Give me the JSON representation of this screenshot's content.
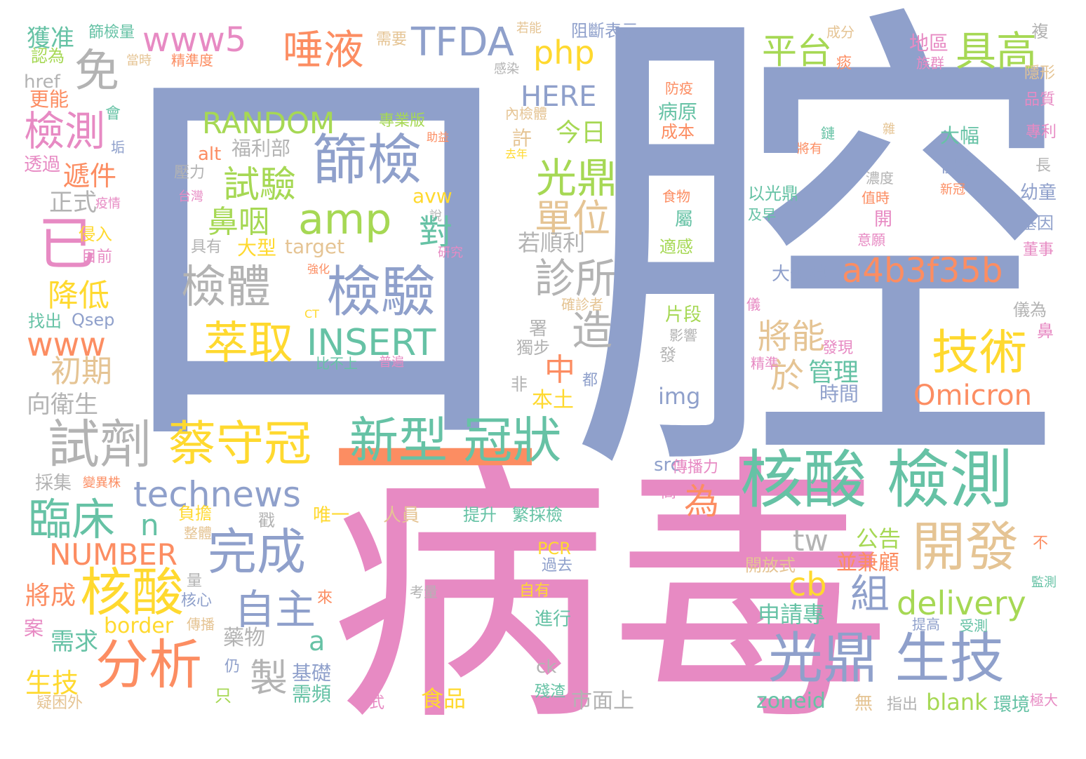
{
  "palette": {
    "blue": "#8fa0cb",
    "pink": "#e78ac3",
    "orange": "#fc8d62",
    "green": "#66c2a5",
    "lime": "#a6d854",
    "yellow": "#ffd92f",
    "tan": "#e5c494",
    "grey": "#b3b3b3"
  },
  "words": [
    {
      "text": "口",
      "color": "blue"
    },
    {
      "text": "腔",
      "color": "blue"
    },
    {
      "text": "病毒",
      "color": "pink"
    },
    {
      "text": "一",
      "color": "orange"
    },
    {
      "text": "核酸 檢測",
      "color": "green"
    },
    {
      "text": "光鼎 生技",
      "color": "blue"
    },
    {
      "text": "篩檢",
      "color": "blue"
    },
    {
      "text": "檢驗",
      "color": "blue"
    },
    {
      "text": "amp",
      "color": "lime"
    },
    {
      "text": "檢體",
      "color": "grey"
    },
    {
      "text": "試驗",
      "color": "lime"
    },
    {
      "text": "萃取",
      "color": "yellow"
    },
    {
      "text": "INSERT",
      "color": "green"
    },
    {
      "text": "RANDOM",
      "color": "lime"
    },
    {
      "text": "鼻咽",
      "color": "lime"
    },
    {
      "text": "福利部",
      "color": "grey"
    },
    {
      "text": "alt",
      "color": "orange"
    },
    {
      "text": "壓力",
      "color": "grey"
    },
    {
      "text": "台灣",
      "color": "pink"
    },
    {
      "text": "具有",
      "color": "grey"
    },
    {
      "text": "大型",
      "color": "yellow"
    },
    {
      "text": "target",
      "color": "tan"
    },
    {
      "text": "專業版",
      "color": "lime"
    },
    {
      "text": "助益",
      "color": "orange"
    },
    {
      "text": "內檢體",
      "color": "tan"
    },
    {
      "text": "許",
      "color": "tan"
    },
    {
      "text": "去年",
      "color": "yellow"
    },
    {
      "text": "說",
      "color": "grey"
    },
    {
      "text": "強化",
      "color": "orange"
    },
    {
      "text": "研究",
      "color": "pink"
    },
    {
      "text": "CT",
      "color": "yellow"
    },
    {
      "text": "比不上",
      "color": "green"
    },
    {
      "text": "普遍",
      "color": "pink"
    },
    {
      "text": "avw",
      "color": "yellow"
    },
    {
      "text": "對",
      "color": "green"
    },
    {
      "text": "試劑",
      "color": "grey"
    },
    {
      "text": "蔡守冠",
      "color": "yellow"
    },
    {
      "text": "新型 冠狀",
      "color": "green"
    },
    {
      "text": "technews",
      "color": "blue"
    },
    {
      "text": "臨床",
      "color": "green"
    },
    {
      "text": "n",
      "color": "green"
    },
    {
      "text": "NUMBER",
      "color": "orange"
    },
    {
      "text": "完成",
      "color": "blue"
    },
    {
      "text": "核酸",
      "color": "yellow"
    },
    {
      "text": "分析",
      "color": "orange"
    },
    {
      "text": "自主",
      "color": "blue"
    },
    {
      "text": "開發",
      "color": "tan"
    },
    {
      "text": "技術",
      "color": "yellow"
    },
    {
      "text": "delivery",
      "color": "lime"
    },
    {
      "text": "Omicron",
      "color": "orange"
    },
    {
      "text": "a4b3f35b",
      "color": "orange"
    },
    {
      "text": "唾液",
      "color": "orange"
    },
    {
      "text": "TFDA",
      "color": "blue"
    },
    {
      "text": "www5",
      "color": "pink"
    },
    {
      "text": "php",
      "color": "yellow"
    },
    {
      "text": "HERE",
      "color": "blue"
    },
    {
      "text": "免",
      "color": "grey"
    },
    {
      "text": "檢測",
      "color": "pink"
    },
    {
      "text": "已",
      "color": "pink"
    },
    {
      "text": "www",
      "color": "orange"
    },
    {
      "text": "初期",
      "color": "tan"
    },
    {
      "text": "降低",
      "color": "yellow"
    },
    {
      "text": "平台",
      "color": "lime"
    },
    {
      "text": "具高",
      "color": "lime"
    },
    {
      "text": "光鼎",
      "color": "lime"
    },
    {
      "text": "單位",
      "color": "tan"
    },
    {
      "text": "今日",
      "color": "lime"
    },
    {
      "text": "診所",
      "color": "grey"
    },
    {
      "text": "若順利",
      "color": "grey"
    },
    {
      "text": "造",
      "color": "grey"
    },
    {
      "text": "將能",
      "color": "tan"
    },
    {
      "text": "於",
      "color": "tan"
    },
    {
      "text": "管理",
      "color": "green"
    },
    {
      "text": "時間",
      "color": "blue"
    },
    {
      "text": "中",
      "color": "orange"
    },
    {
      "text": "本土",
      "color": "yellow"
    },
    {
      "text": "img",
      "color": "blue"
    },
    {
      "text": "為",
      "color": "orange"
    },
    {
      "text": "tw",
      "color": "grey"
    },
    {
      "text": "cb",
      "color": "yellow"
    },
    {
      "text": "組",
      "color": "blue"
    },
    {
      "text": "製",
      "color": "grey"
    },
    {
      "text": "a",
      "color": "green"
    },
    {
      "text": "藥物",
      "color": "grey"
    },
    {
      "text": "公告",
      "color": "lime"
    },
    {
      "text": "並兼顧",
      "color": "orange"
    },
    {
      "text": "申請專",
      "color": "green"
    },
    {
      "text": "zoneid",
      "color": "green"
    },
    {
      "text": "blank",
      "color": "lime"
    },
    {
      "text": "食品",
      "color": "yellow"
    },
    {
      "text": "市面上",
      "color": "grey"
    },
    {
      "text": "生技",
      "color": "yellow"
    },
    {
      "text": "border",
      "color": "yellow"
    },
    {
      "text": "需求",
      "color": "green"
    },
    {
      "text": "將成",
      "color": "orange"
    },
    {
      "text": "遞件",
      "color": "orange"
    },
    {
      "text": "正式",
      "color": "grey"
    },
    {
      "text": "向衛生",
      "color": "grey"
    },
    {
      "text": "採集",
      "color": "grey"
    },
    {
      "text": "獲准",
      "color": "green"
    },
    {
      "text": "篩檢量",
      "color": "green"
    },
    {
      "text": "認為",
      "color": "lime"
    },
    {
      "text": "href",
      "color": "grey"
    },
    {
      "text": "更能",
      "color": "orange"
    },
    {
      "text": "透過",
      "color": "pink"
    },
    {
      "text": "侵入",
      "color": "yellow"
    },
    {
      "text": "目前",
      "color": "pink"
    },
    {
      "text": "找出",
      "color": "green"
    },
    {
      "text": "Qsep",
      "color": "blue"
    },
    {
      "text": "疫情",
      "color": "pink"
    },
    {
      "text": "垢",
      "color": "blue"
    },
    {
      "text": "會",
      "color": "green"
    },
    {
      "text": "當時",
      "color": "tan"
    },
    {
      "text": "精準度",
      "color": "orange"
    },
    {
      "text": "需要",
      "color": "tan"
    },
    {
      "text": "若能",
      "color": "tan"
    },
    {
      "text": "阻斷表示",
      "color": "blue"
    },
    {
      "text": "感染",
      "color": "grey"
    },
    {
      "text": "成分",
      "color": "tan"
    },
    {
      "text": "痰",
      "color": "orange"
    },
    {
      "text": "地區",
      "color": "pink"
    },
    {
      "text": "族群",
      "color": "pink"
    },
    {
      "text": "複",
      "color": "grey"
    },
    {
      "text": "隱形",
      "color": "tan"
    },
    {
      "text": "品質",
      "color": "pink"
    },
    {
      "text": "專利",
      "color": "pink"
    },
    {
      "text": "長",
      "color": "grey"
    },
    {
      "text": "幼童",
      "color": "blue"
    },
    {
      "text": "基因",
      "color": "blue"
    },
    {
      "text": "董事",
      "color": "pink"
    },
    {
      "text": "儀為",
      "color": "grey"
    },
    {
      "text": "鼻",
      "color": "pink"
    },
    {
      "text": "防疫",
      "color": "orange"
    },
    {
      "text": "病原",
      "color": "green"
    },
    {
      "text": "成本",
      "color": "orange"
    },
    {
      "text": "鏈",
      "color": "green"
    },
    {
      "text": "將有",
      "color": "orange"
    },
    {
      "text": "雜",
      "color": "tan"
    },
    {
      "text": "濃度",
      "color": "grey"
    },
    {
      "text": "值時",
      "color": "orange"
    },
    {
      "text": "新冠",
      "color": "orange"
    },
    {
      "text": "食物",
      "color": "orange"
    },
    {
      "text": "屬",
      "color": "green"
    },
    {
      "text": "適感",
      "color": "lime"
    },
    {
      "text": "以光鼎",
      "color": "green"
    },
    {
      "text": "及早",
      "color": "green"
    },
    {
      "text": "開",
      "color": "pink"
    },
    {
      "text": "意願",
      "color": "pink"
    },
    {
      "text": "大幅",
      "color": "green"
    },
    {
      "text": "優勢",
      "color": "blue"
    },
    {
      "text": "大規模",
      "color": "blue"
    },
    {
      "text": "確診者",
      "color": "tan"
    },
    {
      "text": "儀",
      "color": "pink"
    },
    {
      "text": "片段",
      "color": "lime"
    },
    {
      "text": "影響",
      "color": "grey"
    },
    {
      "text": "發",
      "color": "grey"
    },
    {
      "text": "發現",
      "color": "pink"
    },
    {
      "text": "精準",
      "color": "pink"
    },
    {
      "text": "署",
      "color": "grey"
    },
    {
      "text": "獨步",
      "color": "grey"
    },
    {
      "text": "非",
      "color": "grey"
    },
    {
      "text": "都",
      "color": "blue"
    },
    {
      "text": "唯一",
      "color": "yellow"
    },
    {
      "text": "人員",
      "color": "tan"
    },
    {
      "text": "提升",
      "color": "green"
    },
    {
      "text": "繁採檢",
      "color": "green"
    },
    {
      "text": "src",
      "color": "blue"
    },
    {
      "text": "傳播力",
      "color": "pink"
    },
    {
      "text": "高",
      "color": "pink"
    },
    {
      "text": "負擔",
      "color": "yellow"
    },
    {
      "text": "整體",
      "color": "tan"
    },
    {
      "text": "戳",
      "color": "grey"
    },
    {
      "text": "變異株",
      "color": "orange"
    },
    {
      "text": "PCR",
      "color": "yellow"
    },
    {
      "text": "過去",
      "color": "blue"
    },
    {
      "text": "開放式",
      "color": "tan"
    },
    {
      "text": "不",
      "color": "orange"
    },
    {
      "text": "監測",
      "color": "green"
    },
    {
      "text": "量",
      "color": "grey"
    },
    {
      "text": "核心",
      "color": "blue"
    },
    {
      "text": "來",
      "color": "orange"
    },
    {
      "text": "考量",
      "color": "grey"
    },
    {
      "text": "自有",
      "color": "yellow"
    },
    {
      "text": "進行",
      "color": "green"
    },
    {
      "text": "提高",
      "color": "blue"
    },
    {
      "text": "受測",
      "color": "green"
    },
    {
      "text": "案",
      "color": "pink"
    },
    {
      "text": "傳播",
      "color": "tan"
    },
    {
      "text": "仍",
      "color": "blue"
    },
    {
      "text": "基礎",
      "color": "blue"
    },
    {
      "text": "需頻",
      "color": "green"
    },
    {
      "text": "只",
      "color": "lime"
    },
    {
      "text": "ck",
      "color": "grey"
    },
    {
      "text": "殘渣",
      "color": "green"
    },
    {
      "text": "式",
      "color": "pink"
    },
    {
      "text": "無",
      "color": "tan"
    },
    {
      "text": "指出",
      "color": "grey"
    },
    {
      "text": "環境",
      "color": "green"
    },
    {
      "text": "極大",
      "color": "pink"
    },
    {
      "text": "疑困外",
      "color": "tan"
    }
  ]
}
